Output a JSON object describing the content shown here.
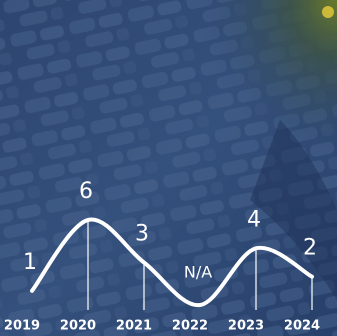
{
  "chart_data": {
    "type": "line",
    "categories": [
      "2019",
      "2020",
      "2021",
      "2022",
      "2023",
      "2024"
    ],
    "values": [
      1,
      6,
      3,
      0,
      4,
      2
    ],
    "value_labels": [
      "1",
      "6",
      "3",
      "N/A",
      "4",
      "2"
    ],
    "color": "#ffffff"
  }
}
